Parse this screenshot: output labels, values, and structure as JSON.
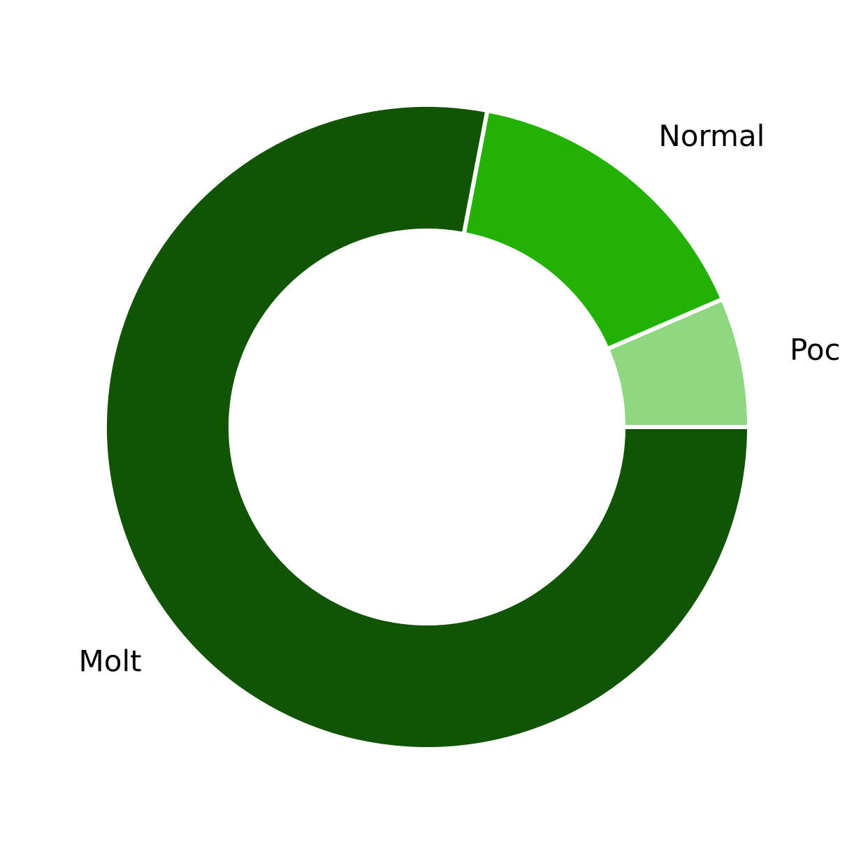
{
  "chart_data": {
    "type": "pie",
    "style": "donut",
    "direction": "counterclockwise",
    "start_angle_deg": 0,
    "slices": [
      {
        "label": "Poc",
        "value": 6.5,
        "color": "#90d782"
      },
      {
        "label": "Normal",
        "value": 15.5,
        "color": "#22b104"
      },
      {
        "label": "Molt",
        "value": 78.0,
        "color": "#115404"
      }
    ],
    "separator_color": "#ffffff",
    "title": "",
    "legend": "none"
  }
}
